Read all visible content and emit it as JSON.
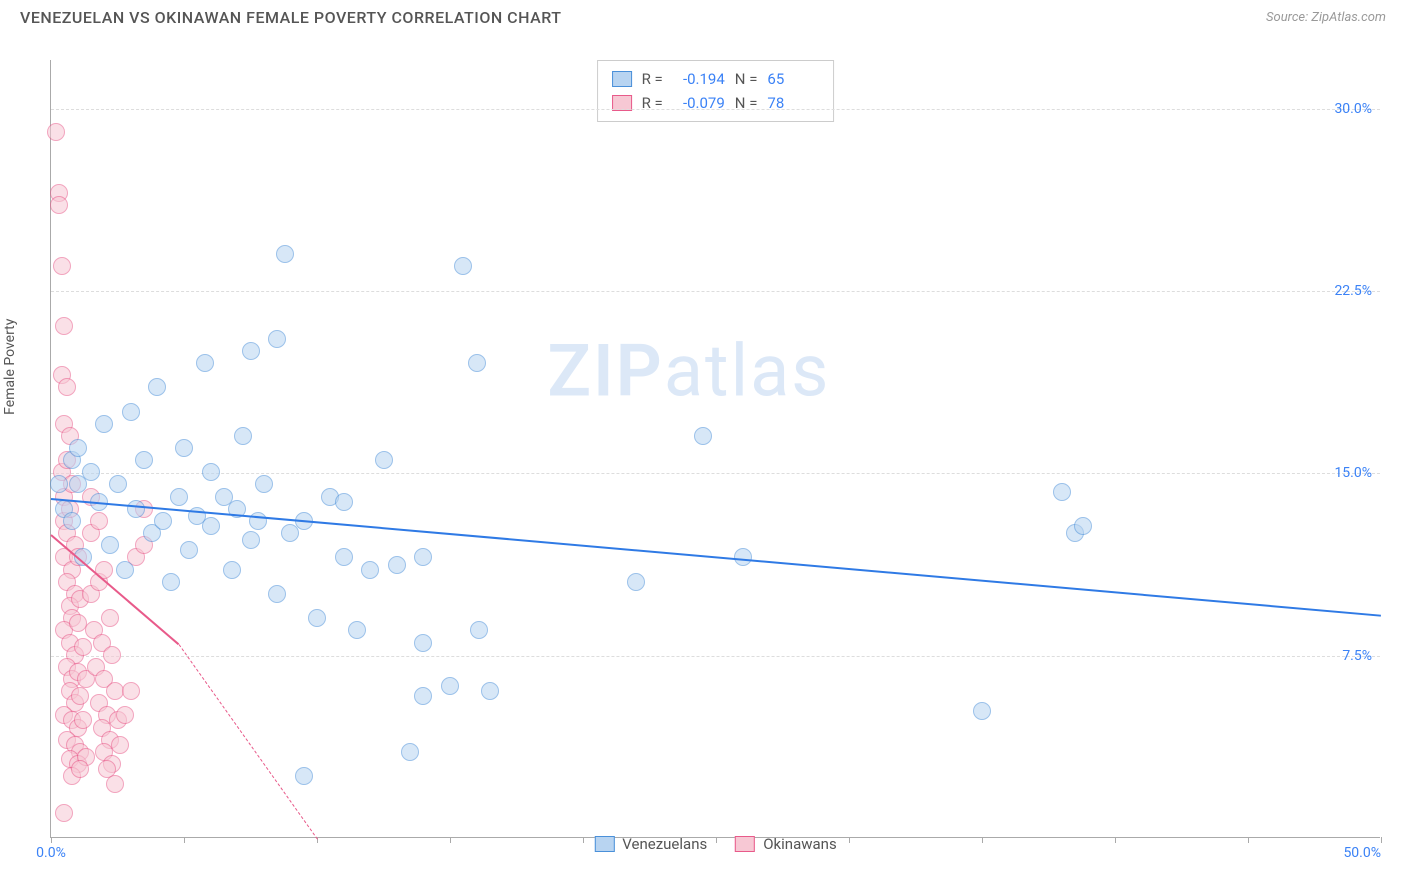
{
  "title": "VENEZUELAN VS OKINAWAN FEMALE POVERTY CORRELATION CHART",
  "source": "Source: ZipAtlas.com",
  "ylabel": "Female Poverty",
  "watermark": {
    "zip": "ZIP",
    "atlas": "atlas",
    "color": "#dce8f7"
  },
  "chart": {
    "type": "scatter",
    "xlim": [
      0,
      50
    ],
    "ylim": [
      0,
      32
    ],
    "xtick_positions": [
      0,
      5,
      10,
      15,
      20,
      25,
      30,
      35,
      40,
      45,
      50
    ],
    "xtick_labels": {
      "0": "0.0%",
      "50": "50.0%"
    },
    "ytick_positions": [
      7.5,
      15.0,
      22.5,
      30.0
    ],
    "ytick_labels": [
      "7.5%",
      "15.0%",
      "22.5%",
      "30.0%"
    ],
    "background_color": "#ffffff",
    "grid_color": "#dddddd",
    "axis_color": "#aaaaaa",
    "tick_label_color": "#3b82f6",
    "point_radius": 9,
    "point_opacity": 0.55
  },
  "series": [
    {
      "name": "Venezuelans",
      "fill": "#b8d4f1",
      "stroke": "#4a90d9",
      "trend_color": "#2f7ae5",
      "R": "-0.194",
      "N": "65",
      "trend": {
        "x1": 0,
        "y1": 14.0,
        "x2": 50,
        "y2": 9.2
      },
      "points": [
        [
          0.3,
          14.5
        ],
        [
          0.5,
          13.5
        ],
        [
          0.8,
          15.5
        ],
        [
          0.8,
          13.0
        ],
        [
          1.0,
          16.0
        ],
        [
          1.0,
          14.5
        ],
        [
          1.2,
          11.5
        ],
        [
          1.5,
          15.0
        ],
        [
          1.8,
          13.8
        ],
        [
          2.0,
          17.0
        ],
        [
          2.2,
          12.0
        ],
        [
          2.5,
          14.5
        ],
        [
          2.8,
          11.0
        ],
        [
          3.0,
          17.5
        ],
        [
          3.2,
          13.5
        ],
        [
          3.5,
          15.5
        ],
        [
          3.8,
          12.5
        ],
        [
          4.0,
          18.5
        ],
        [
          4.2,
          13.0
        ],
        [
          4.5,
          10.5
        ],
        [
          4.8,
          14.0
        ],
        [
          5.0,
          16.0
        ],
        [
          5.2,
          11.8
        ],
        [
          5.5,
          13.2
        ],
        [
          5.8,
          19.5
        ],
        [
          6.0,
          12.8
        ],
        [
          6.0,
          15.0
        ],
        [
          6.5,
          14.0
        ],
        [
          6.8,
          11.0
        ],
        [
          7.0,
          13.5
        ],
        [
          7.2,
          16.5
        ],
        [
          7.5,
          12.2
        ],
        [
          7.5,
          20.0
        ],
        [
          7.8,
          13.0
        ],
        [
          8.0,
          14.5
        ],
        [
          8.5,
          10.0
        ],
        [
          8.5,
          20.5
        ],
        [
          9.0,
          12.5
        ],
        [
          8.8,
          24.0
        ],
        [
          9.5,
          13.0
        ],
        [
          9.5,
          2.5
        ],
        [
          10.0,
          9.0
        ],
        [
          10.5,
          14.0
        ],
        [
          11.0,
          11.5
        ],
        [
          11.0,
          13.8
        ],
        [
          11.5,
          8.5
        ],
        [
          12.0,
          11.0
        ],
        [
          12.5,
          15.5
        ],
        [
          13.0,
          11.2
        ],
        [
          13.5,
          3.5
        ],
        [
          14.0,
          8.0
        ],
        [
          14.0,
          11.5
        ],
        [
          14.0,
          5.8
        ],
        [
          15.0,
          6.2
        ],
        [
          15.5,
          23.5
        ],
        [
          16.0,
          19.5
        ],
        [
          16.1,
          8.5
        ],
        [
          16.5,
          6.0
        ],
        [
          22.0,
          10.5
        ],
        [
          24.5,
          16.5
        ],
        [
          26.0,
          11.5
        ],
        [
          35.0,
          5.2
        ],
        [
          38.0,
          14.2
        ],
        [
          38.5,
          12.5
        ],
        [
          38.8,
          12.8
        ]
      ]
    },
    {
      "name": "Okinawans",
      "fill": "#f7c8d4",
      "stroke": "#e85a8a",
      "trend_color": "#e85a8a",
      "R": "-0.079",
      "N": "78",
      "trend": {
        "x1": 0,
        "y1": 12.5,
        "x2": 4.8,
        "y2": 8.0
      },
      "trend_dash": {
        "x1": 4.8,
        "y1": 8.0,
        "x2": 10.0,
        "y2": 0
      },
      "points": [
        [
          0.2,
          29.0
        ],
        [
          0.3,
          26.5
        ],
        [
          0.3,
          26.0
        ],
        [
          0.4,
          23.5
        ],
        [
          0.5,
          21.0
        ],
        [
          0.4,
          19.0
        ],
        [
          0.6,
          18.5
        ],
        [
          0.5,
          17.0
        ],
        [
          0.7,
          16.5
        ],
        [
          0.4,
          15.0
        ],
        [
          0.6,
          15.5
        ],
        [
          0.5,
          14.0
        ],
        [
          0.8,
          14.5
        ],
        [
          0.5,
          13.0
        ],
        [
          0.7,
          13.5
        ],
        [
          0.6,
          12.5
        ],
        [
          0.9,
          12.0
        ],
        [
          0.5,
          11.5
        ],
        [
          0.8,
          11.0
        ],
        [
          1.0,
          11.5
        ],
        [
          0.6,
          10.5
        ],
        [
          0.9,
          10.0
        ],
        [
          0.7,
          9.5
        ],
        [
          1.1,
          9.8
        ],
        [
          0.8,
          9.0
        ],
        [
          0.5,
          8.5
        ],
        [
          1.0,
          8.8
        ],
        [
          0.7,
          8.0
        ],
        [
          0.9,
          7.5
        ],
        [
          1.2,
          7.8
        ],
        [
          0.6,
          7.0
        ],
        [
          0.8,
          6.5
        ],
        [
          1.0,
          6.8
        ],
        [
          1.3,
          6.5
        ],
        [
          0.7,
          6.0
        ],
        [
          0.9,
          5.5
        ],
        [
          1.1,
          5.8
        ],
        [
          0.5,
          5.0
        ],
        [
          0.8,
          4.8
        ],
        [
          1.0,
          4.5
        ],
        [
          1.2,
          4.8
        ],
        [
          0.6,
          4.0
        ],
        [
          0.9,
          3.8
        ],
        [
          1.1,
          3.5
        ],
        [
          0.7,
          3.2
        ],
        [
          1.0,
          3.0
        ],
        [
          1.3,
          3.3
        ],
        [
          0.8,
          2.5
        ],
        [
          1.1,
          2.8
        ],
        [
          0.5,
          1.0
        ],
        [
          1.5,
          14.0
        ],
        [
          1.5,
          12.5
        ],
        [
          1.8,
          13.0
        ],
        [
          1.5,
          10.0
        ],
        [
          1.8,
          10.5
        ],
        [
          2.0,
          11.0
        ],
        [
          1.6,
          8.5
        ],
        [
          1.9,
          8.0
        ],
        [
          2.2,
          9.0
        ],
        [
          1.7,
          7.0
        ],
        [
          2.0,
          6.5
        ],
        [
          2.3,
          7.5
        ],
        [
          1.8,
          5.5
        ],
        [
          2.1,
          5.0
        ],
        [
          2.4,
          6.0
        ],
        [
          1.9,
          4.5
        ],
        [
          2.2,
          4.0
        ],
        [
          2.5,
          4.8
        ],
        [
          2.0,
          3.5
        ],
        [
          2.3,
          3.0
        ],
        [
          2.6,
          3.8
        ],
        [
          2.1,
          2.8
        ],
        [
          2.4,
          2.2
        ],
        [
          2.8,
          5.0
        ],
        [
          3.0,
          6.0
        ],
        [
          3.2,
          11.5
        ],
        [
          3.5,
          12.0
        ],
        [
          3.5,
          13.5
        ]
      ]
    }
  ],
  "stats_legend": {
    "rows": [
      {
        "swatch_fill": "#b8d4f1",
        "swatch_stroke": "#4a90d9",
        "r_label": "R =",
        "r_val": "-0.194",
        "n_label": "N =",
        "n_val": "65"
      },
      {
        "swatch_fill": "#f7c8d4",
        "swatch_stroke": "#e85a8a",
        "r_label": "R =",
        "r_val": "-0.079",
        "n_label": "N =",
        "n_val": "78"
      }
    ]
  },
  "bottom_legend": [
    {
      "swatch_fill": "#b8d4f1",
      "swatch_stroke": "#4a90d9",
      "label": "Venezuelans"
    },
    {
      "swatch_fill": "#f7c8d4",
      "swatch_stroke": "#e85a8a",
      "label": "Okinawans"
    }
  ]
}
